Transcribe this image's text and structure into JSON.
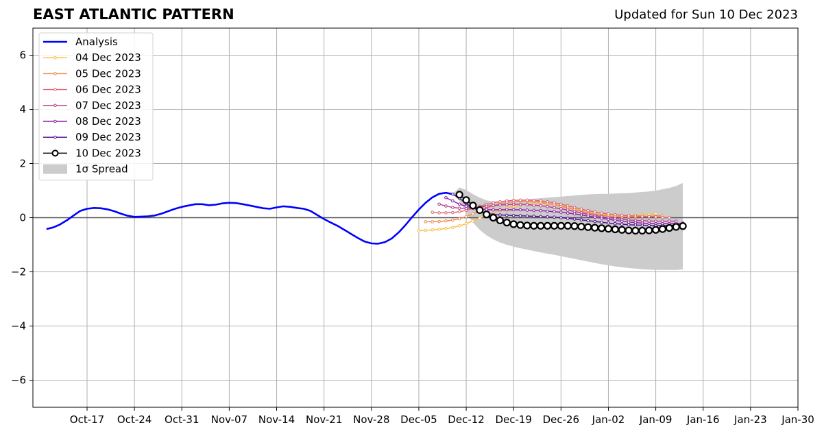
{
  "chart_data": {
    "type": "line",
    "title": "EAST ATLANTIC PATTERN",
    "subtitle": "Updated for Sun 10 Dec 2023",
    "ylim": [
      -7,
      7
    ],
    "yticks": [
      -6,
      -4,
      -2,
      0,
      2,
      4,
      6
    ],
    "ytick_labels": [
      "−6",
      "−4",
      "−2",
      "0",
      "2",
      "4",
      "6"
    ],
    "xlim": [
      "2023-10-09",
      "2024-01-30"
    ],
    "xticks": [
      "2023-10-17",
      "2023-10-24",
      "2023-10-31",
      "2023-11-07",
      "2023-11-14",
      "2023-11-21",
      "2023-11-28",
      "2023-12-05",
      "2023-12-12",
      "2023-12-19",
      "2023-12-26",
      "2024-01-02",
      "2024-01-09",
      "2024-01-16",
      "2024-01-23",
      "2024-01-30"
    ],
    "xtick_labels": [
      "Oct-17",
      "Oct-24",
      "Oct-31",
      "Nov-07",
      "Nov-14",
      "Nov-21",
      "Nov-28",
      "Dec-05",
      "Dec-12",
      "Dec-19",
      "Dec-26",
      "Jan-02",
      "Jan-09",
      "Jan-16",
      "Jan-23",
      "Jan-30"
    ],
    "grid": true,
    "legend_position": "upper-left",
    "analysis": {
      "name": "Analysis",
      "color": "#0000ff",
      "x": [
        "2023-10-11",
        "2023-10-12",
        "2023-10-13",
        "2023-10-14",
        "2023-10-15",
        "2023-10-16",
        "2023-10-17",
        "2023-10-18",
        "2023-10-19",
        "2023-10-20",
        "2023-10-21",
        "2023-10-22",
        "2023-10-23",
        "2023-10-24",
        "2023-10-25",
        "2023-10-26",
        "2023-10-27",
        "2023-10-28",
        "2023-10-29",
        "2023-10-30",
        "2023-10-31",
        "2023-11-01",
        "2023-11-02",
        "2023-11-03",
        "2023-11-04",
        "2023-11-05",
        "2023-11-06",
        "2023-11-07",
        "2023-11-08",
        "2023-11-09",
        "2023-11-10",
        "2023-11-11",
        "2023-11-12",
        "2023-11-13",
        "2023-11-14",
        "2023-11-15",
        "2023-11-16",
        "2023-11-17",
        "2023-11-18",
        "2023-11-19",
        "2023-11-20",
        "2023-11-21",
        "2023-11-22",
        "2023-11-23",
        "2023-11-24",
        "2023-11-25",
        "2023-11-26",
        "2023-11-27",
        "2023-11-28",
        "2023-11-29",
        "2023-11-30",
        "2023-12-01",
        "2023-12-02",
        "2023-12-03",
        "2023-12-04",
        "2023-12-05",
        "2023-12-06",
        "2023-12-07",
        "2023-12-08",
        "2023-12-09",
        "2023-12-10"
      ],
      "y": [
        -0.42,
        -0.36,
        -0.25,
        -0.1,
        0.08,
        0.25,
        0.33,
        0.36,
        0.35,
        0.31,
        0.24,
        0.15,
        0.07,
        0.03,
        0.04,
        0.05,
        0.08,
        0.15,
        0.24,
        0.33,
        0.4,
        0.45,
        0.5,
        0.5,
        0.46,
        0.48,
        0.53,
        0.55,
        0.54,
        0.5,
        0.45,
        0.4,
        0.35,
        0.33,
        0.38,
        0.42,
        0.4,
        0.36,
        0.33,
        0.25,
        0.1,
        -0.05,
        -0.18,
        -0.3,
        -0.45,
        -0.6,
        -0.75,
        -0.88,
        -0.95,
        -0.96,
        -0.9,
        -0.77,
        -0.55,
        -0.28,
        0.02,
        0.3,
        0.55,
        0.75,
        0.88,
        0.92,
        0.87
      ]
    },
    "spread": {
      "name": "1σ Spread",
      "color": "#cccccc",
      "x": [
        "2023-12-10",
        "2023-12-11",
        "2023-12-12",
        "2023-12-13",
        "2023-12-14",
        "2023-12-15",
        "2023-12-16",
        "2023-12-17",
        "2023-12-18",
        "2023-12-19",
        "2023-12-20",
        "2023-12-21",
        "2023-12-22",
        "2023-12-23",
        "2023-12-24",
        "2023-12-25",
        "2023-12-26",
        "2023-12-27",
        "2023-12-28",
        "2023-12-29",
        "2023-12-30",
        "2023-12-31",
        "2024-01-01",
        "2024-01-02",
        "2024-01-03",
        "2024-01-04",
        "2024-01-05",
        "2024-01-06",
        "2024-01-07",
        "2024-01-08",
        "2024-01-09",
        "2024-01-10",
        "2024-01-11",
        "2024-01-12",
        "2024-01-13"
      ],
      "upper": [
        0.87,
        1.12,
        1.02,
        0.87,
        0.74,
        0.64,
        0.6,
        0.6,
        0.62,
        0.64,
        0.66,
        0.68,
        0.7,
        0.72,
        0.74,
        0.76,
        0.78,
        0.8,
        0.82,
        0.84,
        0.86,
        0.87,
        0.88,
        0.88,
        0.89,
        0.9,
        0.91,
        0.93,
        0.95,
        0.97,
        1.0,
        1.05,
        1.1,
        1.17,
        1.28
      ],
      "lower": [
        0.87,
        0.62,
        0.18,
        -0.18,
        -0.45,
        -0.65,
        -0.8,
        -0.92,
        -1.0,
        -1.07,
        -1.13,
        -1.18,
        -1.23,
        -1.28,
        -1.33,
        -1.37,
        -1.42,
        -1.47,
        -1.52,
        -1.57,
        -1.62,
        -1.67,
        -1.72,
        -1.76,
        -1.8,
        -1.83,
        -1.86,
        -1.88,
        -1.9,
        -1.92,
        -1.93,
        -1.93,
        -1.93,
        -1.93,
        -1.91
      ]
    },
    "forecasts": [
      {
        "name": "04 Dec 2023",
        "color": "#fbbc3c",
        "x": [
          "2023-12-05",
          "2023-12-06",
          "2023-12-07",
          "2023-12-08",
          "2023-12-09",
          "2023-12-10",
          "2023-12-11",
          "2023-12-12",
          "2023-12-13",
          "2023-12-14",
          "2023-12-15",
          "2023-12-16",
          "2023-12-17",
          "2023-12-18",
          "2023-12-19",
          "2023-12-20",
          "2023-12-21",
          "2023-12-22",
          "2023-12-23",
          "2023-12-24",
          "2023-12-25",
          "2023-12-26",
          "2023-12-27",
          "2023-12-28",
          "2023-12-29",
          "2023-12-30",
          "2023-12-31",
          "2024-01-01",
          "2024-01-02",
          "2024-01-03",
          "2024-01-04",
          "2024-01-05",
          "2024-01-06",
          "2024-01-07",
          "2024-01-08",
          "2024-01-09"
        ],
        "y": [
          -0.48,
          -0.47,
          -0.45,
          -0.43,
          -0.4,
          -0.36,
          -0.3,
          -0.22,
          -0.12,
          -0.02,
          0.08,
          0.18,
          0.27,
          0.35,
          0.42,
          0.47,
          0.5,
          0.52,
          0.52,
          0.51,
          0.48,
          0.44,
          0.39,
          0.33,
          0.27,
          0.21,
          0.16,
          0.12,
          0.1,
          0.09,
          0.08,
          0.08,
          0.09,
          0.1,
          0.12,
          0.14
        ]
      },
      {
        "name": "05 Dec 2023",
        "color": "#f0854a",
        "x": [
          "2023-12-06",
          "2023-12-07",
          "2023-12-08",
          "2023-12-09",
          "2023-12-10",
          "2023-12-11",
          "2023-12-12",
          "2023-12-13",
          "2023-12-14",
          "2023-12-15",
          "2023-12-16",
          "2023-12-17",
          "2023-12-18",
          "2023-12-19",
          "2023-12-20",
          "2023-12-21",
          "2023-12-22",
          "2023-12-23",
          "2023-12-24",
          "2023-12-25",
          "2023-12-26",
          "2023-12-27",
          "2023-12-28",
          "2023-12-29",
          "2023-12-30",
          "2023-12-31",
          "2024-01-01",
          "2024-01-02",
          "2024-01-03",
          "2024-01-04",
          "2024-01-05",
          "2024-01-06",
          "2024-01-07",
          "2024-01-08",
          "2024-01-09",
          "2024-01-10"
        ],
        "y": [
          -0.15,
          -0.15,
          -0.14,
          -0.12,
          -0.09,
          -0.04,
          0.04,
          0.14,
          0.25,
          0.35,
          0.44,
          0.51,
          0.56,
          0.59,
          0.61,
          0.61,
          0.6,
          0.57,
          0.53,
          0.48,
          0.42,
          0.36,
          0.3,
          0.24,
          0.18,
          0.13,
          0.09,
          0.06,
          0.04,
          0.03,
          0.03,
          0.03,
          0.04,
          0.05,
          0.06,
          0.07
        ]
      },
      {
        "name": "06 Dec 2023",
        "color": "#df6273",
        "x": [
          "2023-12-07",
          "2023-12-08",
          "2023-12-09",
          "2023-12-10",
          "2023-12-11",
          "2023-12-12",
          "2023-12-13",
          "2023-12-14",
          "2023-12-15",
          "2023-12-16",
          "2023-12-17",
          "2023-12-18",
          "2023-12-19",
          "2023-12-20",
          "2023-12-21",
          "2023-12-22",
          "2023-12-23",
          "2023-12-24",
          "2023-12-25",
          "2023-12-26",
          "2023-12-27",
          "2023-12-28",
          "2023-12-29",
          "2023-12-30",
          "2023-12-31",
          "2024-01-01",
          "2024-01-02",
          "2024-01-03",
          "2024-01-04",
          "2024-01-05",
          "2024-01-06",
          "2024-01-07",
          "2024-01-08",
          "2024-01-09",
          "2024-01-10",
          "2024-01-11"
        ],
        "y": [
          0.2,
          0.18,
          0.18,
          0.19,
          0.22,
          0.27,
          0.34,
          0.42,
          0.49,
          0.55,
          0.59,
          0.62,
          0.64,
          0.65,
          0.65,
          0.64,
          0.62,
          0.59,
          0.55,
          0.5,
          0.44,
          0.38,
          0.32,
          0.26,
          0.21,
          0.17,
          0.14,
          0.11,
          0.09,
          0.07,
          0.06,
          0.05,
          0.04,
          0.03,
          0.01,
          0.0
        ]
      },
      {
        "name": "07 Dec 2023",
        "color": "#b83a8c",
        "x": [
          "2023-12-08",
          "2023-12-09",
          "2023-12-10",
          "2023-12-11",
          "2023-12-12",
          "2023-12-13",
          "2023-12-14",
          "2023-12-15",
          "2023-12-16",
          "2023-12-17",
          "2023-12-18",
          "2023-12-19",
          "2023-12-20",
          "2023-12-21",
          "2023-12-22",
          "2023-12-23",
          "2023-12-24",
          "2023-12-25",
          "2023-12-26",
          "2023-12-27",
          "2023-12-28",
          "2023-12-29",
          "2023-12-30",
          "2023-12-31",
          "2024-01-01",
          "2024-01-02",
          "2024-01-03",
          "2024-01-04",
          "2024-01-05",
          "2024-01-06",
          "2024-01-07",
          "2024-01-08",
          "2024-01-09",
          "2024-01-10",
          "2024-01-11",
          "2024-01-12"
        ],
        "y": [
          0.5,
          0.43,
          0.38,
          0.35,
          0.34,
          0.36,
          0.39,
          0.42,
          0.45,
          0.47,
          0.48,
          0.49,
          0.49,
          0.48,
          0.46,
          0.44,
          0.41,
          0.37,
          0.33,
          0.28,
          0.23,
          0.18,
          0.13,
          0.08,
          0.04,
          0.0,
          -0.03,
          -0.06,
          -0.08,
          -0.1,
          -0.11,
          -0.12,
          -0.13,
          -0.13,
          -0.13,
          -0.13
        ]
      },
      {
        "name": "08 Dec 2023",
        "color": "#8a1ea5",
        "x": [
          "2023-12-09",
          "2023-12-10",
          "2023-12-11",
          "2023-12-12",
          "2023-12-13",
          "2023-12-14",
          "2023-12-15",
          "2023-12-16",
          "2023-12-17",
          "2023-12-18",
          "2023-12-19",
          "2023-12-20",
          "2023-12-21",
          "2023-12-22",
          "2023-12-23",
          "2023-12-24",
          "2023-12-25",
          "2023-12-26",
          "2023-12-27",
          "2023-12-28",
          "2023-12-29",
          "2023-12-30",
          "2023-12-31",
          "2024-01-01",
          "2024-01-02",
          "2024-01-03",
          "2024-01-04",
          "2024-01-05",
          "2024-01-06",
          "2024-01-07",
          "2024-01-08",
          "2024-01-09",
          "2024-01-10",
          "2024-01-11",
          "2024-01-12",
          "2024-01-13"
        ],
        "y": [
          0.74,
          0.62,
          0.5,
          0.42,
          0.36,
          0.32,
          0.3,
          0.29,
          0.29,
          0.29,
          0.29,
          0.29,
          0.28,
          0.27,
          0.26,
          0.24,
          0.22,
          0.2,
          0.17,
          0.14,
          0.1,
          0.06,
          0.02,
          -0.02,
          -0.06,
          -0.1,
          -0.13,
          -0.16,
          -0.18,
          -0.2,
          -0.21,
          -0.22,
          -0.22,
          -0.22,
          -0.21,
          -0.2
        ]
      },
      {
        "name": "09 Dec 2023",
        "color": "#4c0a8c",
        "x": [
          "2023-12-10",
          "2023-12-11",
          "2023-12-12",
          "2023-12-13",
          "2023-12-14",
          "2023-12-15",
          "2023-12-16",
          "2023-12-17",
          "2023-12-18",
          "2023-12-19",
          "2023-12-20",
          "2023-12-21",
          "2023-12-22",
          "2023-12-23",
          "2023-12-24",
          "2023-12-25",
          "2023-12-26",
          "2023-12-27",
          "2023-12-28",
          "2023-12-29",
          "2023-12-30",
          "2023-12-31",
          "2024-01-01",
          "2024-01-02",
          "2024-01-03",
          "2024-01-04",
          "2024-01-05",
          "2024-01-06",
          "2024-01-07",
          "2024-01-08",
          "2024-01-09",
          "2024-01-10",
          "2024-01-11",
          "2024-01-12",
          "2024-01-13"
        ],
        "y": [
          0.87,
          0.72,
          0.52,
          0.36,
          0.25,
          0.17,
          0.12,
          0.1,
          0.09,
          0.08,
          0.07,
          0.06,
          0.05,
          0.04,
          0.03,
          0.02,
          0.0,
          -0.02,
          -0.05,
          -0.08,
          -0.11,
          -0.14,
          -0.17,
          -0.2,
          -0.22,
          -0.24,
          -0.26,
          -0.27,
          -0.28,
          -0.29,
          -0.29,
          -0.29,
          -0.28,
          -0.27,
          -0.26
        ]
      }
    ],
    "current_forecast": {
      "name": "10 Dec 2023",
      "color": "#000000",
      "x": [
        "2023-12-11",
        "2023-12-12",
        "2023-12-13",
        "2023-12-14",
        "2023-12-15",
        "2023-12-16",
        "2023-12-17",
        "2023-12-18",
        "2023-12-19",
        "2023-12-20",
        "2023-12-21",
        "2023-12-22",
        "2023-12-23",
        "2023-12-24",
        "2023-12-25",
        "2023-12-26",
        "2023-12-27",
        "2023-12-28",
        "2023-12-29",
        "2023-12-30",
        "2023-12-31",
        "2024-01-01",
        "2024-01-02",
        "2024-01-03",
        "2024-01-04",
        "2024-01-05",
        "2024-01-06",
        "2024-01-07",
        "2024-01-08",
        "2024-01-09",
        "2024-01-10",
        "2024-01-11",
        "2024-01-12",
        "2024-01-13"
      ],
      "y": [
        0.85,
        0.65,
        0.45,
        0.28,
        0.12,
        0.0,
        -0.1,
        -0.18,
        -0.24,
        -0.27,
        -0.29,
        -0.3,
        -0.3,
        -0.3,
        -0.3,
        -0.3,
        -0.3,
        -0.31,
        -0.33,
        -0.35,
        -0.37,
        -0.39,
        -0.41,
        -0.43,
        -0.45,
        -0.47,
        -0.48,
        -0.48,
        -0.47,
        -0.45,
        -0.42,
        -0.38,
        -0.34,
        -0.31
      ]
    }
  }
}
